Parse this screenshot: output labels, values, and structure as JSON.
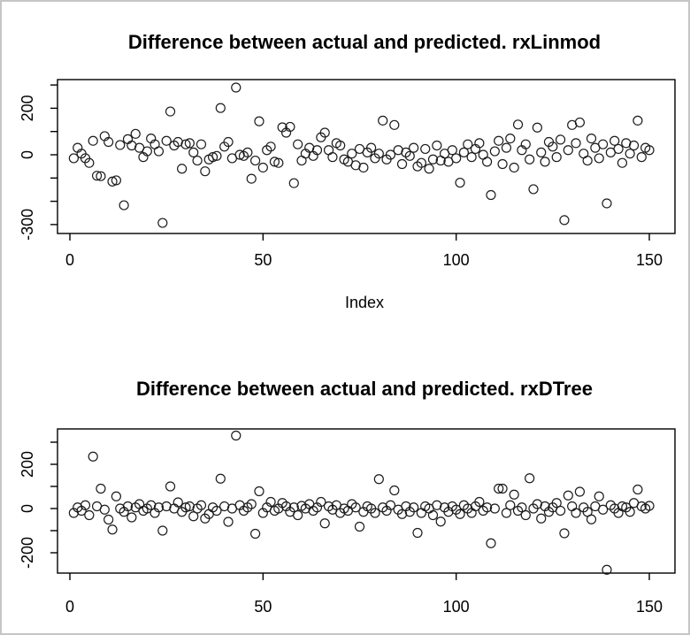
{
  "window": {
    "background": "#ffffff",
    "border_color": "#c6c6c6",
    "axis_color": "#000000",
    "point_color": "#1c1c1c"
  },
  "chart_data": [
    {
      "type": "scatter",
      "title": "Difference between actual and predicted. rxLinmod",
      "xlabel": "Index",
      "ylabel": "",
      "marker": "open-circle",
      "xlim": [
        0,
        155
      ],
      "ylim": [
        -330,
        320
      ],
      "grid": false,
      "legend": "none",
      "x_ticks": [
        0,
        50,
        100,
        150
      ],
      "y_ticks": [
        -300,
        -200,
        -100,
        0,
        100,
        200,
        300
      ],
      "y_labeled_ticks": [
        -300,
        0,
        200
      ],
      "points": [
        [
          1,
          -15
        ],
        [
          2,
          30
        ],
        [
          3,
          5
        ],
        [
          4,
          -15
        ],
        [
          5,
          -35
        ],
        [
          6,
          60
        ],
        [
          7,
          -90
        ],
        [
          8,
          -92
        ],
        [
          9,
          80
        ],
        [
          10,
          55
        ],
        [
          11,
          -115
        ],
        [
          12,
          -110
        ],
        [
          13,
          42
        ],
        [
          14,
          -217
        ],
        [
          15,
          67
        ],
        [
          16,
          40
        ],
        [
          17,
          90
        ],
        [
          18,
          30
        ],
        [
          19,
          -10
        ],
        [
          20,
          15
        ],
        [
          21,
          70
        ],
        [
          22,
          45
        ],
        [
          23,
          15
        ],
        [
          24,
          -293
        ],
        [
          25,
          60
        ],
        [
          26,
          186
        ],
        [
          27,
          40
        ],
        [
          28,
          55
        ],
        [
          29,
          -60
        ],
        [
          30,
          45
        ],
        [
          31,
          50
        ],
        [
          32,
          10
        ],
        [
          33,
          -25
        ],
        [
          34,
          45
        ],
        [
          35,
          -71
        ],
        [
          36,
          -20
        ],
        [
          37,
          -10
        ],
        [
          38,
          -5
        ],
        [
          39,
          201
        ],
        [
          40,
          35
        ],
        [
          41,
          55
        ],
        [
          42,
          -15
        ],
        [
          43,
          289
        ],
        [
          44,
          0
        ],
        [
          45,
          -5
        ],
        [
          46,
          10
        ],
        [
          47,
          -103
        ],
        [
          48,
          -25
        ],
        [
          49,
          144
        ],
        [
          50,
          -55
        ],
        [
          51,
          20
        ],
        [
          52,
          35
        ],
        [
          53,
          -30
        ],
        [
          54,
          -35
        ],
        [
          55,
          118
        ],
        [
          56,
          95
        ],
        [
          57,
          120
        ],
        [
          58,
          -122
        ],
        [
          59,
          45
        ],
        [
          60,
          -25
        ],
        [
          61,
          5
        ],
        [
          62,
          30
        ],
        [
          63,
          -5
        ],
        [
          64,
          20
        ],
        [
          65,
          75
        ],
        [
          66,
          95
        ],
        [
          67,
          20
        ],
        [
          68,
          -10
        ],
        [
          69,
          50
        ],
        [
          70,
          40
        ],
        [
          71,
          -20
        ],
        [
          72,
          -30
        ],
        [
          73,
          5
        ],
        [
          74,
          -45
        ],
        [
          75,
          25
        ],
        [
          76,
          -55
        ],
        [
          77,
          10
        ],
        [
          78,
          30
        ],
        [
          79,
          -15
        ],
        [
          80,
          5
        ],
        [
          81,
          147
        ],
        [
          82,
          -20
        ],
        [
          83,
          0
        ],
        [
          84,
          128
        ],
        [
          85,
          20
        ],
        [
          86,
          -40
        ],
        [
          87,
          10
        ],
        [
          88,
          -5
        ],
        [
          89,
          30
        ],
        [
          90,
          -50
        ],
        [
          91,
          -35
        ],
        [
          92,
          25
        ],
        [
          93,
          -60
        ],
        [
          94,
          -20
        ],
        [
          95,
          40
        ],
        [
          96,
          -25
        ],
        [
          97,
          5
        ],
        [
          98,
          -30
        ],
        [
          99,
          20
        ],
        [
          100,
          -15
        ],
        [
          101,
          -120
        ],
        [
          102,
          10
        ],
        [
          103,
          45
        ],
        [
          104,
          -10
        ],
        [
          105,
          25
        ],
        [
          106,
          50
        ],
        [
          107,
          0
        ],
        [
          108,
          -30
        ],
        [
          109,
          -173
        ],
        [
          110,
          15
        ],
        [
          111,
          60
        ],
        [
          112,
          -40
        ],
        [
          113,
          30
        ],
        [
          114,
          70
        ],
        [
          115,
          -55
        ],
        [
          116,
          130
        ],
        [
          117,
          20
        ],
        [
          118,
          45
        ],
        [
          119,
          -20
        ],
        [
          120,
          -148
        ],
        [
          121,
          117
        ],
        [
          122,
          10
        ],
        [
          123,
          -30
        ],
        [
          124,
          55
        ],
        [
          125,
          35
        ],
        [
          126,
          -10
        ],
        [
          127,
          65
        ],
        [
          128,
          -281
        ],
        [
          129,
          20
        ],
        [
          130,
          128
        ],
        [
          131,
          50
        ],
        [
          132,
          139
        ],
        [
          133,
          5
        ],
        [
          134,
          -25
        ],
        [
          135,
          70
        ],
        [
          136,
          30
        ],
        [
          137,
          -15
        ],
        [
          138,
          45
        ],
        [
          139,
          -209
        ],
        [
          140,
          10
        ],
        [
          141,
          60
        ],
        [
          142,
          25
        ],
        [
          143,
          -35
        ],
        [
          144,
          50
        ],
        [
          145,
          5
        ],
        [
          146,
          40
        ],
        [
          147,
          147
        ],
        [
          148,
          -10
        ],
        [
          149,
          30
        ],
        [
          150,
          20
        ]
      ]
    },
    {
      "type": "scatter",
      "title": "Difference between actual and predicted. rxDTree",
      "xlabel": "",
      "ylabel": "",
      "marker": "open-circle",
      "xlim": [
        0,
        155
      ],
      "ylim": [
        -290,
        360
      ],
      "grid": false,
      "legend": "none",
      "x_ticks": [
        0,
        50,
        100,
        150
      ],
      "y_ticks": [
        -200,
        -100,
        0,
        100,
        200,
        300
      ],
      "y_labeled_ticks": [
        -200,
        0,
        200
      ],
      "points": [
        [
          1,
          -20
        ],
        [
          2,
          5
        ],
        [
          3,
          -10
        ],
        [
          4,
          15
        ],
        [
          5,
          -30
        ],
        [
          6,
          235
        ],
        [
          7,
          10
        ],
        [
          8,
          90
        ],
        [
          9,
          -5
        ],
        [
          10,
          -50
        ],
        [
          11,
          -95
        ],
        [
          12,
          55
        ],
        [
          13,
          0
        ],
        [
          14,
          -15
        ],
        [
          15,
          10
        ],
        [
          16,
          -40
        ],
        [
          17,
          5
        ],
        [
          18,
          20
        ],
        [
          19,
          -10
        ],
        [
          20,
          0
        ],
        [
          21,
          15
        ],
        [
          22,
          -20
        ],
        [
          23,
          5
        ],
        [
          24,
          -100
        ],
        [
          25,
          10
        ],
        [
          26,
          100
        ],
        [
          27,
          0
        ],
        [
          28,
          28
        ],
        [
          29,
          -15
        ],
        [
          30,
          5
        ],
        [
          31,
          10
        ],
        [
          32,
          -35
        ],
        [
          33,
          0
        ],
        [
          34,
          15
        ],
        [
          35,
          -45
        ],
        [
          36,
          -25
        ],
        [
          37,
          5
        ],
        [
          38,
          -10
        ],
        [
          39,
          135
        ],
        [
          40,
          10
        ],
        [
          41,
          -60
        ],
        [
          42,
          0
        ],
        [
          43,
          330
        ],
        [
          44,
          15
        ],
        [
          45,
          -10
        ],
        [
          46,
          5
        ],
        [
          47,
          20
        ],
        [
          48,
          -114
        ],
        [
          49,
          78
        ],
        [
          50,
          -20
        ],
        [
          51,
          5
        ],
        [
          52,
          30
        ],
        [
          53,
          -10
        ],
        [
          54,
          0
        ],
        [
          55,
          25
        ],
        [
          56,
          10
        ],
        [
          57,
          -15
        ],
        [
          58,
          5
        ],
        [
          59,
          -30
        ],
        [
          60,
          12
        ],
        [
          61,
          0
        ],
        [
          62,
          20
        ],
        [
          63,
          -10
        ],
        [
          64,
          5
        ],
        [
          65,
          30
        ],
        [
          66,
          -67
        ],
        [
          67,
          10
        ],
        [
          68,
          -5
        ],
        [
          69,
          15
        ],
        [
          70,
          -20
        ],
        [
          71,
          0
        ],
        [
          72,
          -10
        ],
        [
          73,
          20
        ],
        [
          74,
          5
        ],
        [
          75,
          -82
        ],
        [
          76,
          -15
        ],
        [
          77,
          10
        ],
        [
          78,
          0
        ],
        [
          79,
          -20
        ],
        [
          80,
          133
        ],
        [
          81,
          5
        ],
        [
          82,
          -10
        ],
        [
          83,
          15
        ],
        [
          84,
          82
        ],
        [
          85,
          -5
        ],
        [
          86,
          -25
        ],
        [
          87,
          10
        ],
        [
          88,
          -15
        ],
        [
          89,
          5
        ],
        [
          90,
          -110
        ],
        [
          91,
          -20
        ],
        [
          92,
          10
        ],
        [
          93,
          0
        ],
        [
          94,
          -30
        ],
        [
          95,
          15
        ],
        [
          96,
          -59
        ],
        [
          97,
          5
        ],
        [
          98,
          -15
        ],
        [
          99,
          10
        ],
        [
          100,
          -5
        ],
        [
          101,
          -25
        ],
        [
          102,
          15
        ],
        [
          103,
          0
        ],
        [
          104,
          -20
        ],
        [
          105,
          10
        ],
        [
          106,
          30
        ],
        [
          107,
          -10
        ],
        [
          108,
          5
        ],
        [
          109,
          -157
        ],
        [
          110,
          0
        ],
        [
          111,
          90
        ],
        [
          112,
          90
        ],
        [
          113,
          -20
        ],
        [
          114,
          15
        ],
        [
          115,
          63
        ],
        [
          116,
          -10
        ],
        [
          117,
          5
        ],
        [
          118,
          -30
        ],
        [
          119,
          137
        ],
        [
          120,
          0
        ],
        [
          121,
          20
        ],
        [
          122,
          -45
        ],
        [
          123,
          10
        ],
        [
          124,
          -15
        ],
        [
          125,
          5
        ],
        [
          126,
          25
        ],
        [
          127,
          -10
        ],
        [
          128,
          -112
        ],
        [
          129,
          59
        ],
        [
          130,
          10
        ],
        [
          131,
          -20
        ],
        [
          132,
          76
        ],
        [
          133,
          5
        ],
        [
          134,
          -15
        ],
        [
          135,
          -49
        ],
        [
          136,
          10
        ],
        [
          137,
          55
        ],
        [
          138,
          -5
        ],
        [
          139,
          -277
        ],
        [
          140,
          15
        ],
        [
          141,
          0
        ],
        [
          142,
          -20
        ],
        [
          143,
          10
        ],
        [
          144,
          5
        ],
        [
          145,
          -15
        ],
        [
          146,
          25
        ],
        [
          147,
          86
        ],
        [
          148,
          10
        ],
        [
          149,
          0
        ],
        [
          150,
          12
        ]
      ]
    }
  ]
}
